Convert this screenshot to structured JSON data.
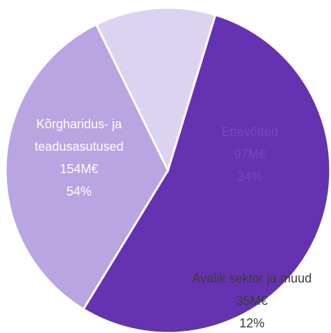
{
  "chart_data": {
    "type": "pie",
    "categories": [
      "Kõrgharidus- ja teadusasutused",
      "Ettevõtted",
      "Avalik sektor ja muud"
    ],
    "values": [
      54,
      34,
      12
    ],
    "value_labels": [
      "54%",
      "34%",
      "12%"
    ],
    "amount_labels": [
      "154M€",
      "97M€",
      "35M€"
    ],
    "colors": [
      "#6533b1",
      "#b8a5e1",
      "#dcd3f1"
    ],
    "label_colors": [
      "#ffffff",
      "#7447c2",
      "#3a3a3a"
    ]
  }
}
